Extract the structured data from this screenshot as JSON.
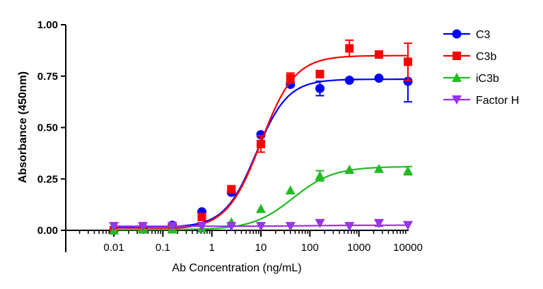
{
  "chart_data": {
    "type": "scatter",
    "xlabel": "Ab Concentration (ng/mL)",
    "ylabel": "Absorbance (450nm)",
    "xscale": "log",
    "xlim": [
      0.001,
      10000
    ],
    "ylim": [
      0,
      1
    ],
    "xticks": [
      "0.01",
      "0.1",
      "1",
      "10",
      "100",
      "1000",
      "10000"
    ],
    "yticks": [
      "0.00",
      "0.25",
      "0.50",
      "0.75",
      "1.00"
    ],
    "grid": false,
    "legend": "right",
    "x": [
      0.01,
      0.039,
      0.156,
      0.625,
      2.5,
      10,
      40,
      160,
      640,
      2560,
      10000
    ],
    "series": [
      {
        "name": "C3",
        "color": "#0000ff",
        "marker": "circle",
        "values": [
          0.0,
          0.01,
          0.025,
          0.09,
          0.185,
          0.465,
          0.71,
          0.69,
          0.73,
          0.74,
          0.725
        ],
        "errors": [
          0,
          0,
          0,
          0,
          0,
          0.01,
          0.01,
          0.035,
          0,
          0,
          0.1
        ]
      },
      {
        "name": "C3b",
        "color": "#ff0000",
        "marker": "square",
        "values": [
          0.0,
          0.005,
          0.02,
          0.065,
          0.2,
          0.42,
          0.74,
          0.76,
          0.885,
          0.855,
          0.82
        ],
        "errors": [
          0,
          0,
          0,
          0,
          0,
          0.04,
          0.025,
          0,
          0.04,
          0,
          0.09
        ]
      },
      {
        "name": "iC3b",
        "color": "#22bb22",
        "marker": "triangle-up",
        "values": [
          0.0,
          0.005,
          0.005,
          0.01,
          0.04,
          0.105,
          0.195,
          0.265,
          0.295,
          0.3,
          0.29
        ],
        "errors": [
          0,
          0,
          0,
          0,
          0,
          0,
          0,
          0.025,
          0,
          0,
          0.02
        ]
      },
      {
        "name": "Factor H",
        "color": "#9933ee",
        "marker": "triangle-down",
        "values": [
          0.02,
          0.02,
          0.02,
          0.02,
          0.02,
          0.02,
          0.02,
          0.035,
          0.02,
          0.035,
          0.025
        ],
        "errors": [
          0,
          0,
          0,
          0,
          0,
          0,
          0,
          0,
          0,
          0.015,
          0
        ]
      }
    ]
  }
}
